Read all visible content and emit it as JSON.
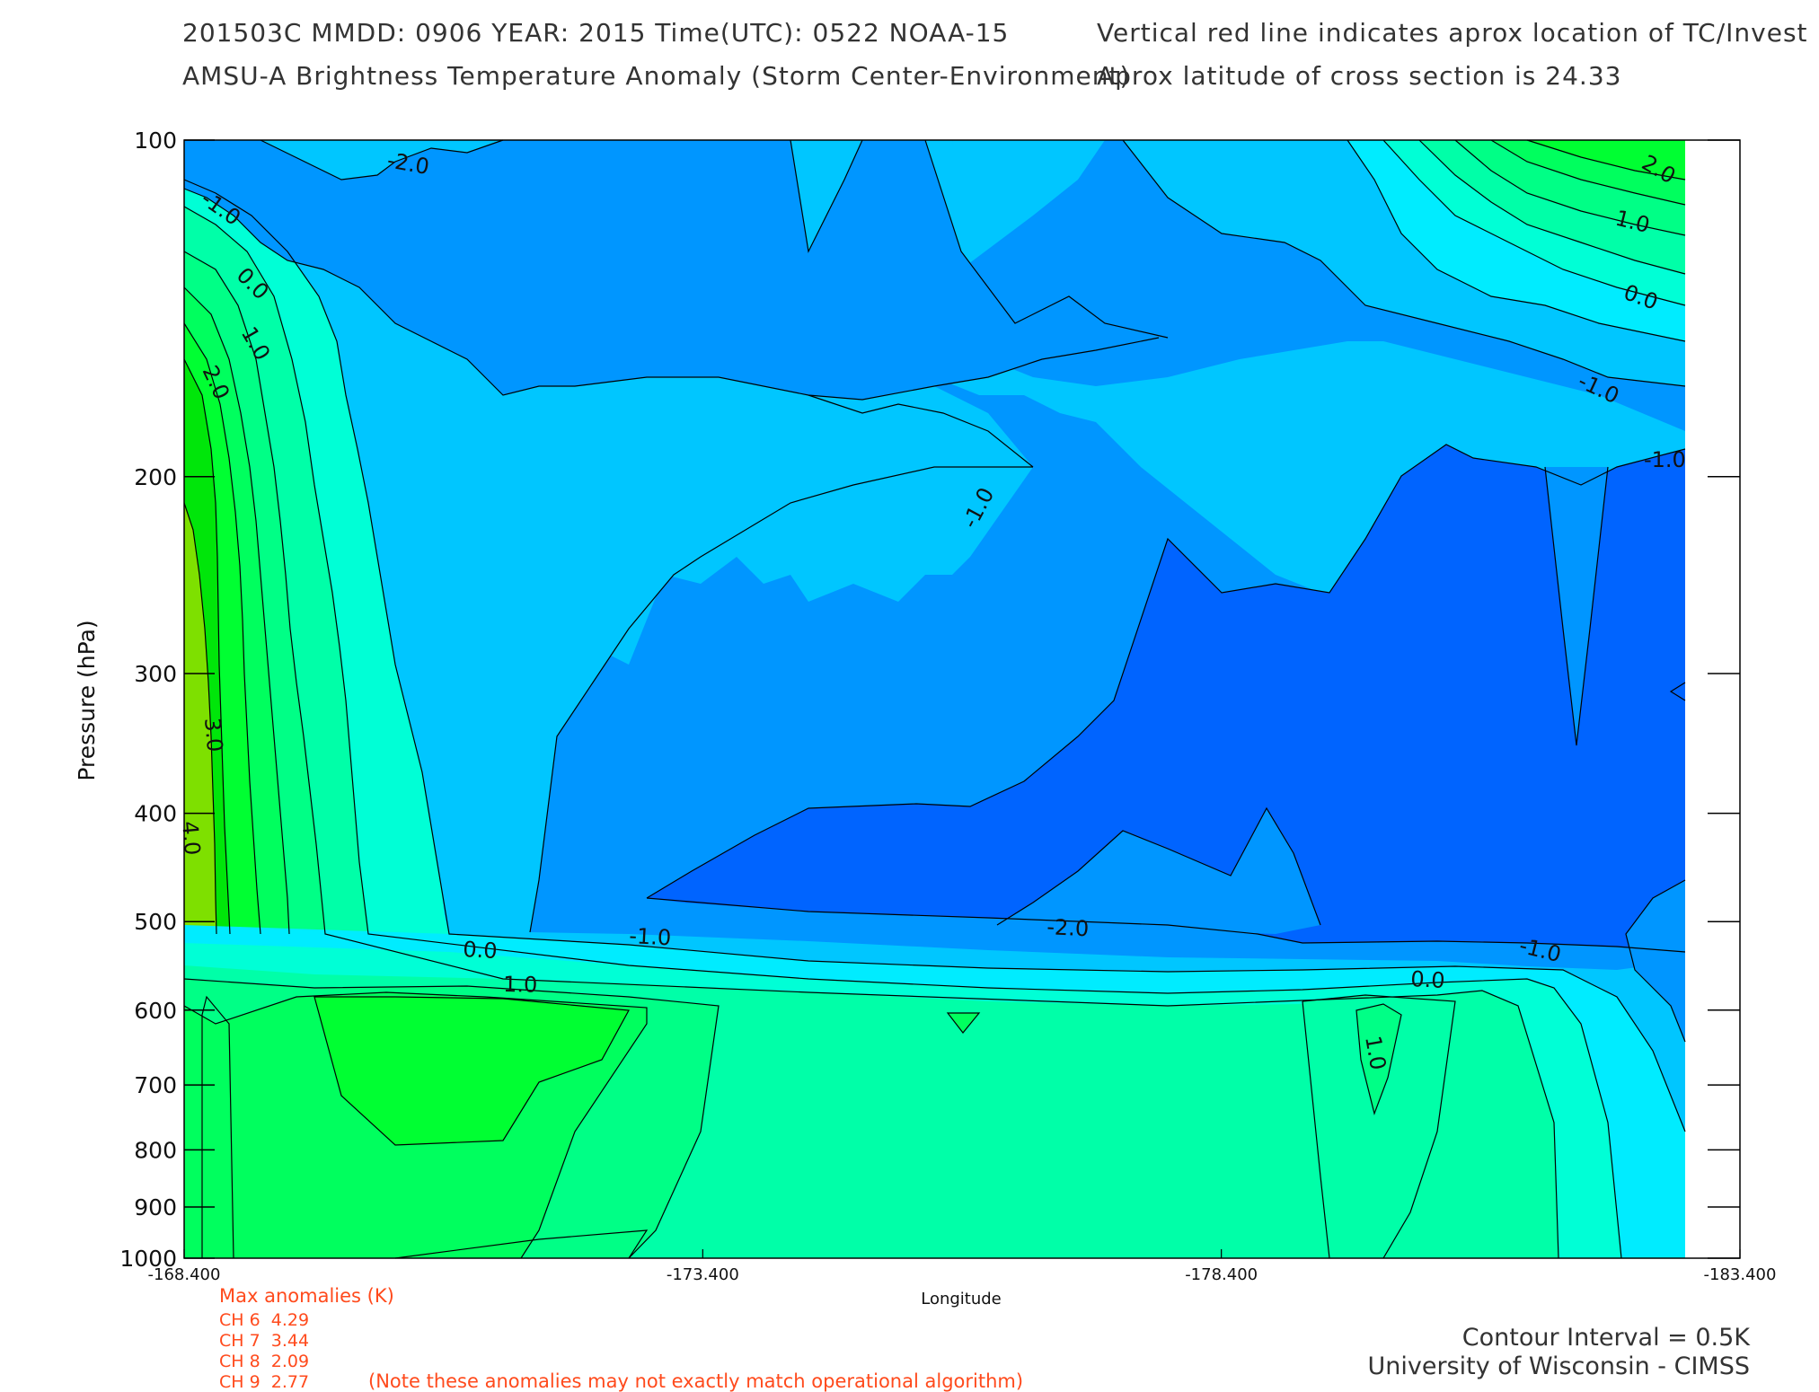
{
  "header": {
    "line1_left": "201503C  MMDD: 0906 YEAR: 2015 Time(UTC): 0522 NOAA-15",
    "line1_right": "Vertical red line indicates aprox location of TC/Invest",
    "line2_left": "AMSU-A Brightness Temperature Anomaly (Storm Center-Environment)",
    "line2_right": "Aprox latitude of cross section is 24.33"
  },
  "chart_data": {
    "type": "contour",
    "xlabel": "Longitude",
    "ylabel": "Pressure (hPa)",
    "x_ticks": [
      "-168.400",
      "-173.400",
      "-178.400",
      "-183.400"
    ],
    "xlim": [
      -168.4,
      -183.4
    ],
    "y_ticks": [
      100,
      200,
      300,
      400,
      500,
      600,
      700,
      800,
      900,
      1000
    ],
    "ylim": [
      100,
      1000
    ],
    "contour_interval_K": 0.5,
    "contour_labels": [
      "-2.0",
      "-1.0",
      "0.0",
      "1.0",
      "2.0",
      "3.0",
      "4.0",
      "-1.0",
      "0.0",
      "1.0",
      "-1.0",
      "-2.0",
      "-1.0",
      "0.0",
      "1.0",
      "-1.0",
      "0.0",
      "1.0",
      "2.0",
      "-1.0"
    ],
    "color_levels": [
      {
        "level": -2.5,
        "color": "#0a3be8"
      },
      {
        "level": -2.0,
        "color": "#0064ff"
      },
      {
        "level": -1.5,
        "color": "#0096ff"
      },
      {
        "level": -1.0,
        "color": "#00c6ff"
      },
      {
        "level": -0.5,
        "color": "#00ecff"
      },
      {
        "level": 0.0,
        "color": "#00ffd6"
      },
      {
        "level": 0.5,
        "color": "#00ffa8"
      },
      {
        "level": 1.0,
        "color": "#00ff86"
      },
      {
        "level": 1.5,
        "color": "#00ff5e"
      },
      {
        "level": 2.0,
        "color": "#00ff32"
      },
      {
        "level": 3.0,
        "color": "#00e60a"
      },
      {
        "level": 4.0,
        "color": "#7ee000"
      }
    ]
  },
  "max_anomalies": {
    "title": "Max anomalies (K)",
    "rows": [
      "CH 6  4.29",
      "CH 7  3.44",
      "CH 8  2.09",
      "CH 9  2.77"
    ],
    "note": "(Note these anomalies may not exactly match operational algorithm)"
  },
  "footer": {
    "contour_interval": "Contour Interval = 0.5K",
    "credit": "University of Wisconsin - CIMSS"
  }
}
